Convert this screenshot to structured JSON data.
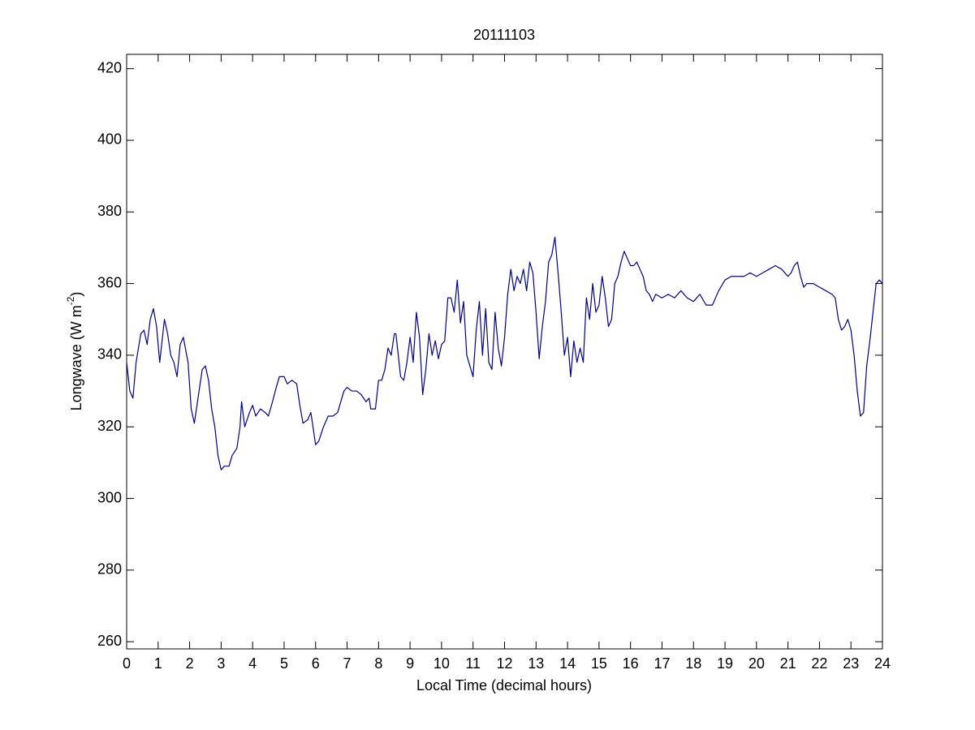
{
  "chart_data": {
    "type": "line",
    "title": "20111103",
    "xlabel": "Local Time (decimal hours)",
    "ylabel": {
      "text": "Longwave (W m",
      "superscript": "-2",
      "suffix": ")"
    },
    "color": "#00008b",
    "xlim": [
      0,
      24
    ],
    "xticks": [
      0,
      1,
      2,
      3,
      4,
      5,
      6,
      7,
      8,
      9,
      10,
      11,
      12,
      13,
      14,
      15,
      16,
      17,
      18,
      19,
      20,
      21,
      22,
      23,
      24
    ],
    "ylim": [
      258,
      424
    ],
    "yticks": [
      260,
      280,
      300,
      320,
      340,
      360,
      380,
      400,
      420
    ],
    "x": [
      0,
      0.1,
      0.2,
      0.3,
      0.45,
      0.55,
      0.65,
      0.75,
      0.85,
      0.95,
      1.05,
      1.2,
      1.3,
      1.4,
      1.5,
      1.6,
      1.7,
      1.8,
      1.95,
      2.05,
      2.15,
      2.3,
      2.4,
      2.5,
      2.6,
      2.7,
      2.8,
      2.9,
      3.0,
      3.1,
      3.25,
      3.35,
      3.5,
      3.6,
      3.65,
      3.75,
      3.9,
      4.0,
      4.1,
      4.25,
      4.4,
      4.5,
      4.6,
      4.75,
      4.85,
      5.0,
      5.1,
      5.25,
      5.4,
      5.5,
      5.6,
      5.75,
      5.85,
      5.95,
      6.0,
      6.1,
      6.25,
      6.4,
      6.55,
      6.7,
      6.8,
      6.9,
      7.0,
      7.15,
      7.3,
      7.45,
      7.6,
      7.7,
      7.75,
      7.9,
      8.0,
      8.1,
      8.2,
      8.3,
      8.4,
      8.5,
      8.55,
      8.65,
      8.7,
      8.8,
      8.9,
      9.0,
      9.1,
      9.2,
      9.3,
      9.4,
      9.5,
      9.6,
      9.7,
      9.8,
      9.9,
      10.0,
      10.1,
      10.2,
      10.3,
      10.4,
      10.5,
      10.6,
      10.7,
      10.8,
      10.9,
      11.0,
      11.1,
      11.2,
      11.3,
      11.4,
      11.5,
      11.6,
      11.7,
      11.8,
      11.9,
      12.0,
      12.1,
      12.2,
      12.3,
      12.4,
      12.5,
      12.6,
      12.7,
      12.8,
      12.9,
      13.0,
      13.1,
      13.2,
      13.3,
      13.4,
      13.5,
      13.6,
      13.7,
      13.8,
      13.9,
      14.0,
      14.1,
      14.2,
      14.3,
      14.4,
      14.5,
      14.6,
      14.7,
      14.8,
      14.9,
      15.0,
      15.1,
      15.2,
      15.3,
      15.4,
      15.5,
      15.6,
      15.7,
      15.8,
      15.9,
      16.0,
      16.1,
      16.2,
      16.3,
      16.4,
      16.5,
      16.6,
      16.7,
      16.8,
      17.0,
      17.2,
      17.4,
      17.6,
      17.8,
      18.0,
      18.2,
      18.4,
      18.6,
      18.8,
      19.0,
      19.2,
      19.4,
      19.6,
      19.8,
      20.0,
      20.2,
      20.4,
      20.6,
      20.8,
      21.0,
      21.1,
      21.2,
      21.3,
      21.4,
      21.5,
      21.6,
      21.8,
      22.0,
      22.2,
      22.4,
      22.5,
      22.6,
      22.7,
      22.8,
      22.9,
      23.0,
      23.1,
      23.2,
      23.3,
      23.4,
      23.5,
      23.6,
      23.7,
      23.8,
      23.9,
      24.0
    ],
    "values": [
      338,
      330,
      328,
      338,
      346,
      347,
      343,
      350,
      353,
      348,
      338,
      350,
      346,
      340,
      338,
      334,
      343,
      345,
      338,
      325,
      321,
      330,
      336,
      337,
      333,
      325,
      320,
      312,
      308,
      309,
      309,
      312,
      314,
      320,
      327,
      320,
      324,
      326,
      323,
      325,
      324,
      323,
      326,
      331,
      334,
      334,
      332,
      333,
      332,
      326,
      321,
      322,
      324,
      318,
      315,
      316,
      320,
      323,
      323,
      324,
      327,
      330,
      331,
      330,
      330,
      329,
      327,
      328,
      325,
      325,
      333,
      333,
      336,
      342,
      340,
      346,
      346,
      338,
      334,
      333,
      338,
      345,
      338,
      352,
      345,
      329,
      336,
      346,
      340,
      344,
      339,
      343,
      344,
      356,
      356,
      352,
      361,
      349,
      355,
      340,
      337,
      334,
      347,
      355,
      340,
      353,
      338,
      336,
      352,
      342,
      337,
      345,
      357,
      364,
      358,
      362,
      360,
      364,
      358,
      366,
      363,
      352,
      339,
      348,
      355,
      366,
      368,
      373,
      363,
      352,
      340,
      345,
      334,
      344,
      338,
      342,
      338,
      356,
      350,
      360,
      352,
      354,
      362,
      356,
      348,
      350,
      360,
      362,
      366,
      369,
      367,
      365,
      365,
      366,
      364,
      362,
      358,
      357,
      355,
      357,
      356,
      357,
      356,
      358,
      356,
      355,
      357,
      354,
      354,
      358,
      361,
      362,
      362,
      362,
      363,
      362,
      363,
      364,
      365,
      364,
      362,
      363,
      365,
      366,
      362,
      359,
      360,
      360,
      359,
      358,
      357,
      356,
      350,
      347,
      348,
      350,
      347,
      340,
      330,
      323,
      324,
      337,
      344,
      352,
      360,
      361,
      360
    ]
  }
}
